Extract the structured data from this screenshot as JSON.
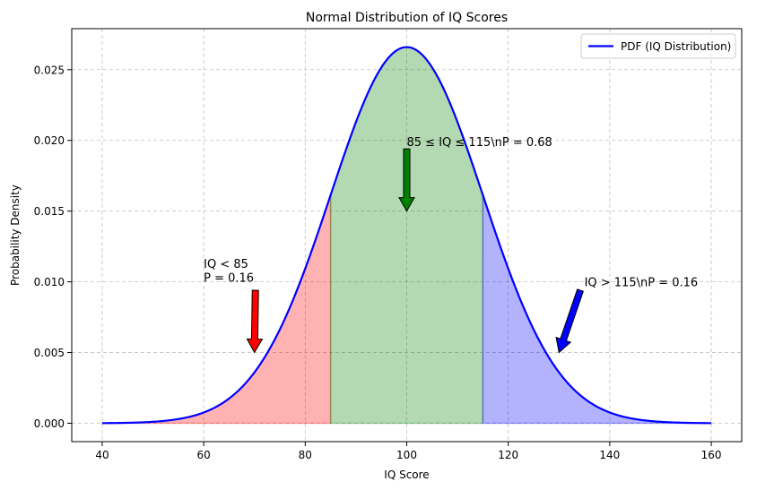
{
  "chart_data": {
    "type": "line",
    "title": "Normal Distribution of IQ Scores",
    "xlabel": "IQ Score",
    "ylabel": "Probability Density",
    "xlim": [
      34,
      166
    ],
    "ylim": [
      -0.0013,
      0.0279
    ],
    "xticks": [
      40,
      60,
      80,
      100,
      120,
      140,
      160
    ],
    "xtick_labels": [
      "40",
      "60",
      "80",
      "100",
      "120",
      "140",
      "160"
    ],
    "yticks": [
      0.0,
      0.005,
      0.01,
      0.015,
      0.02,
      0.025
    ],
    "ytick_labels": [
      "0.000",
      "0.005",
      "0.010",
      "0.015",
      "0.020",
      "0.025"
    ],
    "grid": true,
    "legend_placement": "top-right",
    "series": [
      {
        "name": "PDF (IQ Distribution)",
        "color": "#0000ff",
        "distribution": {
          "mean": 100,
          "sd": 15
        },
        "x": [
          40,
          45,
          50,
          55,
          60,
          65,
          70,
          75,
          80,
          85,
          90,
          95,
          100,
          105,
          110,
          115,
          120,
          125,
          130,
          135,
          140,
          145,
          150,
          155,
          160
        ],
        "y": [
          1e-05,
          4e-05,
          0.0001,
          0.00029,
          0.0009,
          0.00175,
          0.0036,
          0.0066,
          0.0109,
          0.0161,
          0.0213,
          0.0252,
          0.0266,
          0.0252,
          0.0213,
          0.0161,
          0.0109,
          0.0066,
          0.0036,
          0.00175,
          0.0009,
          0.00029,
          0.0001,
          4e-05,
          1e-05
        ]
      }
    ],
    "regions": [
      {
        "x_from": 40,
        "x_to": 85,
        "color": "#ff0000",
        "opacity": 0.3
      },
      {
        "x_from": 85,
        "x_to": 115,
        "color": "#008000",
        "opacity": 0.3
      },
      {
        "x_from": 115,
        "x_to": 160,
        "color": "#0000ff",
        "opacity": 0.3
      }
    ],
    "annotations": [
      {
        "lines": [
          "IQ < 85",
          "P = 0.16"
        ],
        "text_x": 60,
        "text_y": 0.01,
        "arrow_to_x": 70,
        "arrow_to_y": 0.005,
        "color": "#ff0000"
      },
      {
        "lines": [
          "85 ≤ IQ ≤ 115\\nP = 0.68"
        ],
        "text_x": 100,
        "text_y": 0.0196,
        "arrow_to_x": 100,
        "arrow_to_y": 0.015,
        "color": "#008000"
      },
      {
        "lines": [
          "IQ > 115\\nP = 0.16"
        ],
        "text_x": 135,
        "text_y": 0.0097,
        "arrow_to_x": 130,
        "arrow_to_y": 0.005,
        "color": "#0000ff"
      }
    ]
  }
}
